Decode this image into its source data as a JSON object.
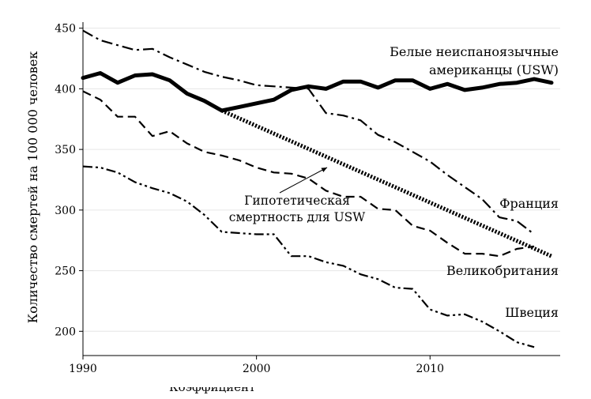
{
  "chart_data": {
    "type": "line",
    "title": "",
    "xlabel": "",
    "ylabel": "Количество смертей на 100 000 человек",
    "xlim": [
      1990,
      2017.5
    ],
    "ylim": [
      180,
      455
    ],
    "grid": true,
    "x_ticks": [
      1990,
      2000,
      2010
    ],
    "y_ticks": [
      200,
      250,
      300,
      350,
      400,
      450
    ],
    "series": [
      {
        "name": "Белые неиспаноязычные американцы (USW)",
        "label_lines": [
          "Белые неиспаноязычные",
          "американцы (USW)"
        ],
        "style": "solid-thick",
        "x": [
          1990,
          1991,
          1992,
          1993,
          1994,
          1995,
          1996,
          1997,
          1998,
          1999,
          2000,
          2001,
          2002,
          2003,
          2004,
          2005,
          2006,
          2007,
          2008,
          2009,
          2010,
          2011,
          2012,
          2013,
          2014,
          2015,
          2016,
          2017
        ],
        "values": [
          409,
          413,
          405,
          411,
          412,
          407,
          396,
          390,
          382,
          385,
          388,
          391,
          399,
          402,
          400,
          406,
          406,
          401,
          407,
          407,
          400,
          404,
          399,
          401,
          404,
          405,
          408,
          405
        ]
      },
      {
        "name": "Франция",
        "label_lines": [
          "Франция"
        ],
        "style": "dashdot",
        "x": [
          1990,
          1991,
          1992,
          1993,
          1994,
          1995,
          1996,
          1997,
          1998,
          1999,
          2000,
          2001,
          2002,
          2003,
          2004,
          2005,
          2006,
          2007,
          2008,
          2009,
          2010,
          2011,
          2012,
          2013,
          2014,
          2015,
          2016
        ],
        "values": [
          448,
          440,
          436,
          432,
          433,
          426,
          420,
          414,
          410,
          407,
          403,
          402,
          401,
          400,
          380,
          378,
          374,
          362,
          356,
          348,
          340,
          329,
          319,
          309,
          294,
          291,
          280
        ]
      },
      {
        "name": "Великобритания",
        "label_lines": [
          "Великобритания"
        ],
        "style": "dashed",
        "x": [
          1990,
          1991,
          1992,
          1993,
          1994,
          1995,
          1996,
          1997,
          1998,
          1999,
          2000,
          2001,
          2002,
          2003,
          2004,
          2005,
          2006,
          2007,
          2008,
          2009,
          2010,
          2011,
          2012,
          2013,
          2014,
          2015,
          2016
        ],
        "values": [
          398,
          391,
          377,
          377,
          361,
          365,
          355,
          348,
          345,
          341,
          335,
          331,
          330,
          326,
          316,
          311,
          311,
          301,
          300,
          287,
          283,
          273,
          264,
          264,
          262,
          268,
          270
        ]
      },
      {
        "name": "Швеция",
        "label_lines": [
          "Швеция"
        ],
        "style": "dashdotdot",
        "x": [
          1990,
          1991,
          1992,
          1993,
          1994,
          1995,
          1996,
          1997,
          1998,
          1999,
          2000,
          2001,
          2002,
          2003,
          2004,
          2005,
          2006,
          2007,
          2008,
          2009,
          2010,
          2011,
          2012,
          2013,
          2014,
          2015,
          2016
        ],
        "values": [
          336,
          335,
          331,
          323,
          318,
          314,
          307,
          296,
          282,
          281,
          280,
          280,
          262,
          262,
          257,
          254,
          247,
          243,
          236,
          235,
          218,
          213,
          214,
          208,
          200,
          191,
          187
        ]
      },
      {
        "name": "Гипотетическая смертность для USW",
        "label_lines": [
          "Гипотетическая",
          "смертность для USW"
        ],
        "style": "dotted-thick",
        "x": [
          1998,
          2017
        ],
        "values": [
          382,
          262
        ]
      }
    ],
    "annotations": [
      {
        "text_lines": [
          "Гипотетическая",
          "смертность для USW"
        ],
        "points_to": {
          "x": 2002.5,
          "y": 347
        }
      }
    ]
  },
  "caption_fragment": "Коэффициент"
}
